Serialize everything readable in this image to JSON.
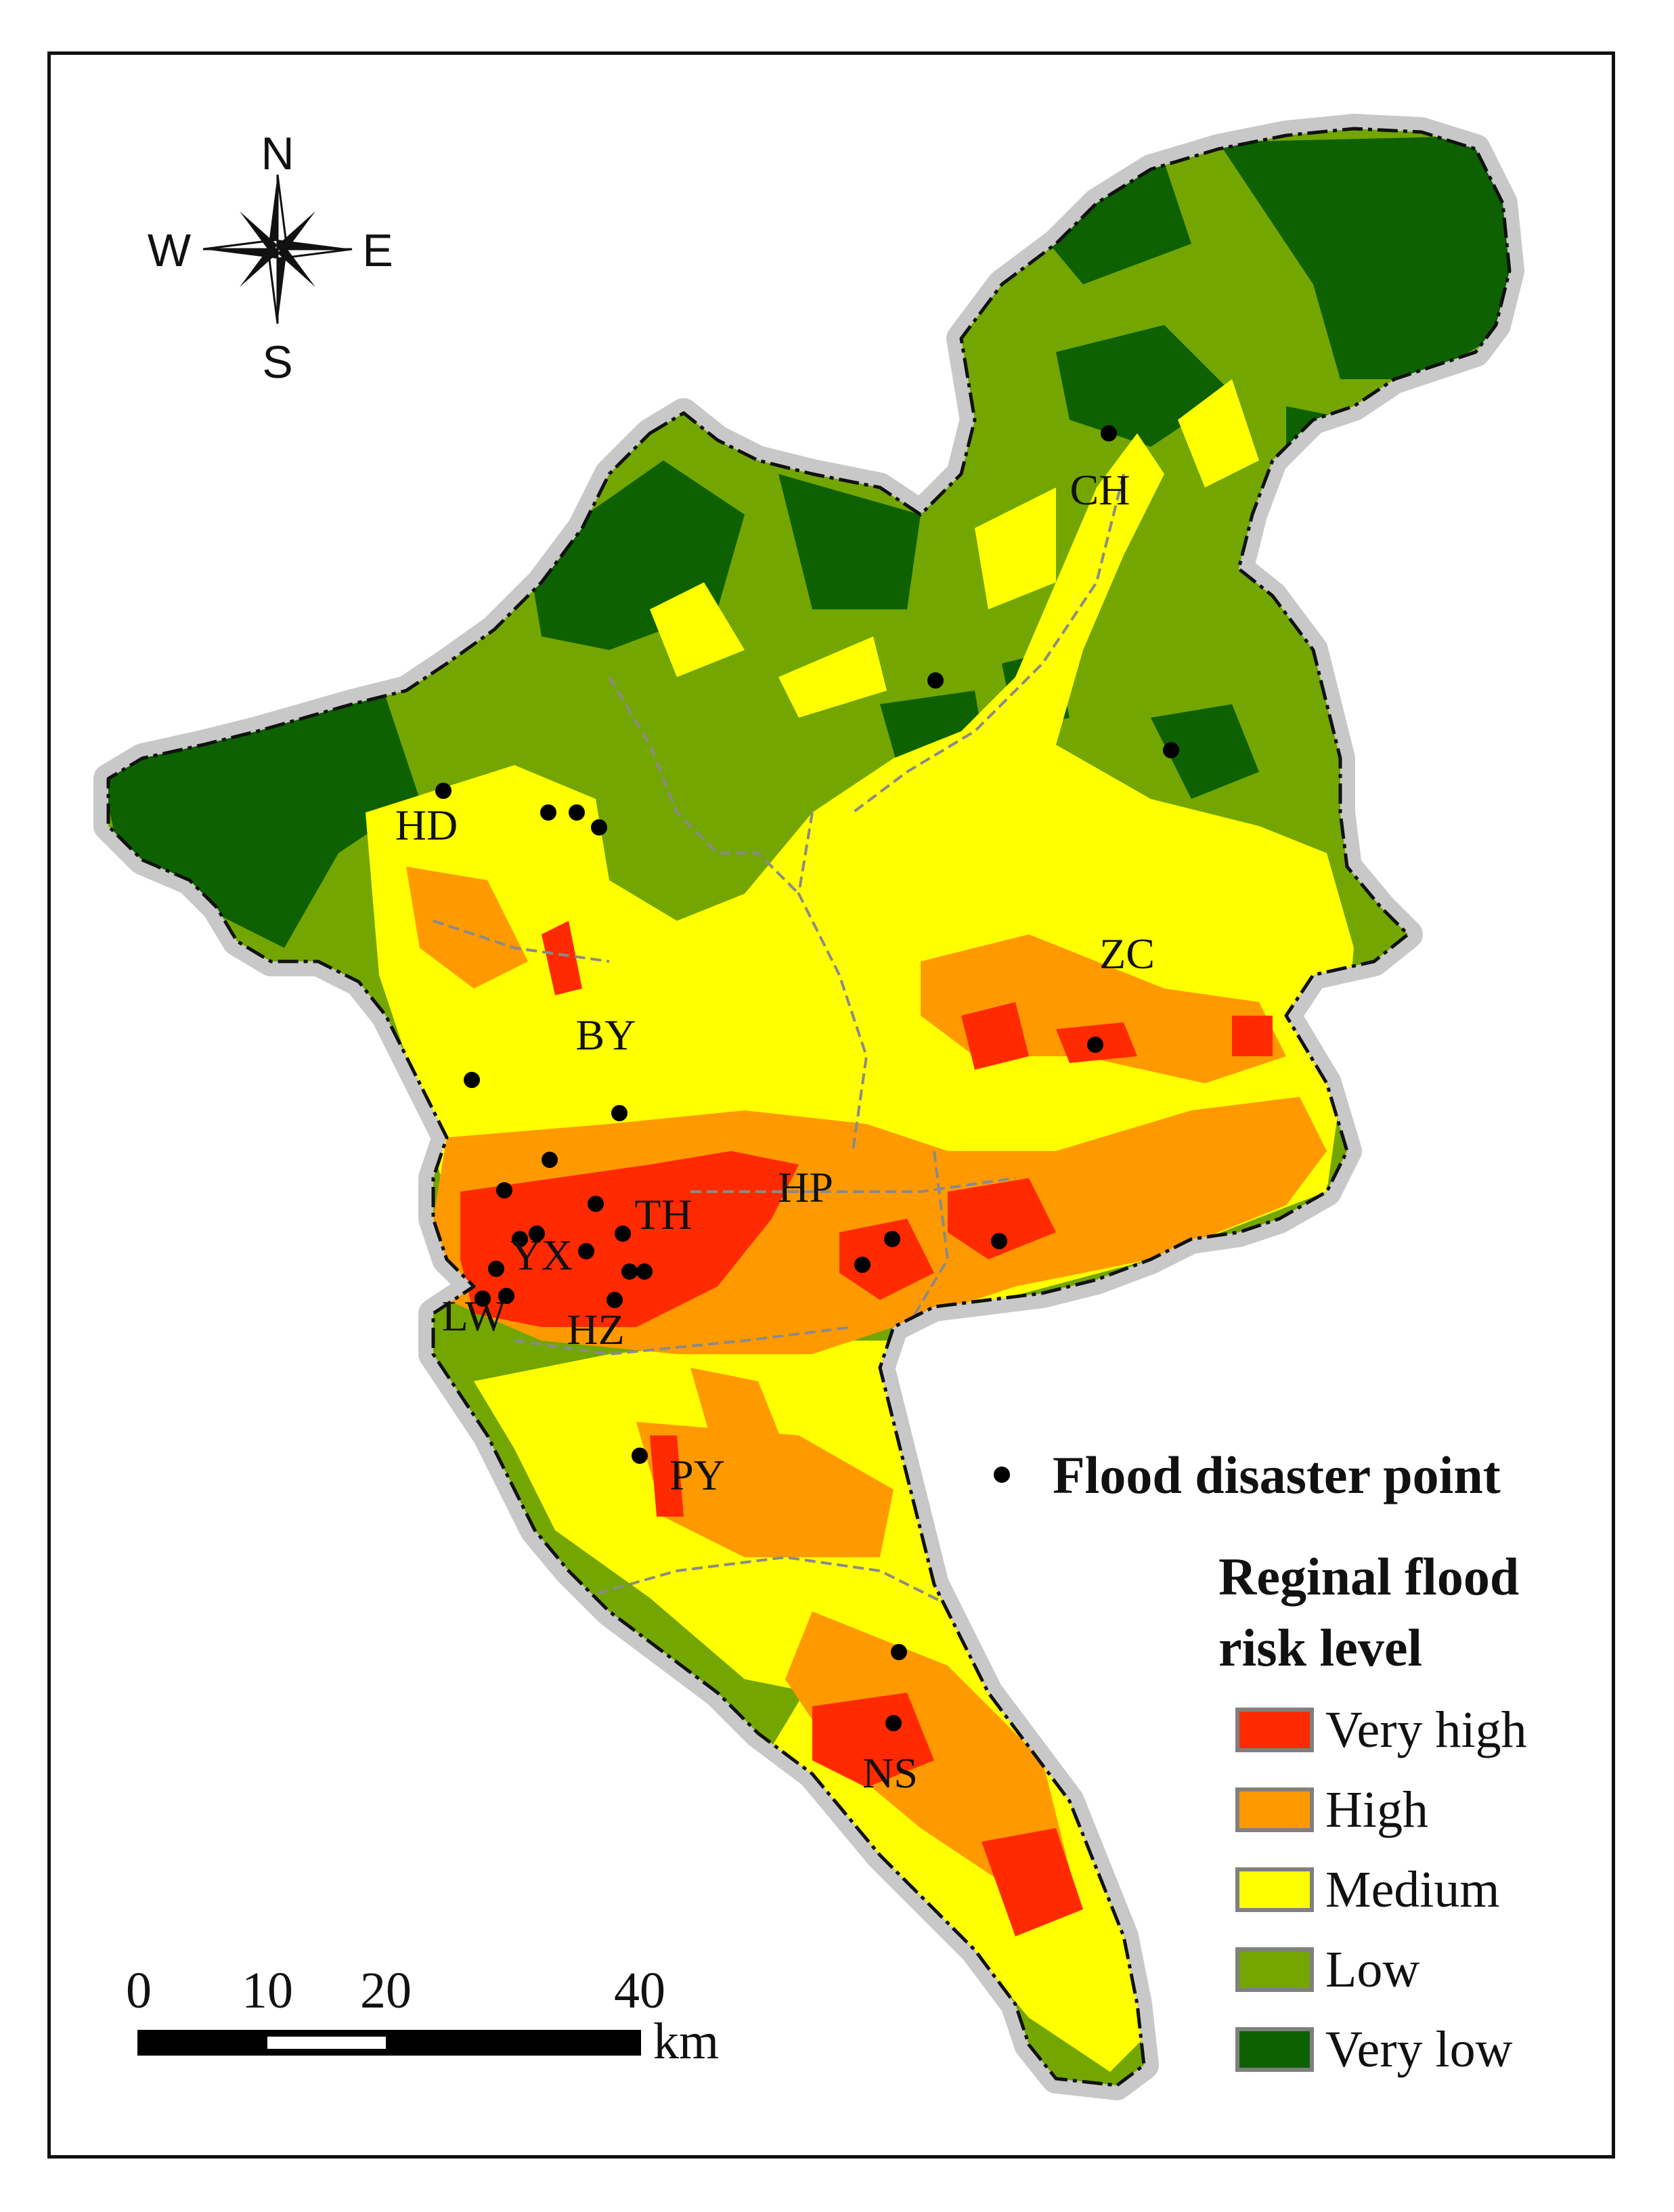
{
  "compass": {
    "north": "N",
    "south": "S",
    "east": "E",
    "west": "W"
  },
  "districts": [
    {
      "code": "CH"
    },
    {
      "code": "HD"
    },
    {
      "code": "ZC"
    },
    {
      "code": "BY"
    },
    {
      "code": "HP"
    },
    {
      "code": "TH"
    },
    {
      "code": "YX"
    },
    {
      "code": "LW"
    },
    {
      "code": "HZ"
    },
    {
      "code": "PY"
    },
    {
      "code": "NS"
    }
  ],
  "legend": {
    "points_label": "Flood disaster point",
    "title_line1": "Reginal flood",
    "title_line2": "risk level",
    "items": [
      {
        "label": "Very high",
        "color": "#ff2a00"
      },
      {
        "label": "High",
        "color": "#ff9900"
      },
      {
        "label": "Medium",
        "color": "#ffff00"
      },
      {
        "label": "Low",
        "color": "#73a600"
      },
      {
        "label": "Very low",
        "color": "#0d6100"
      }
    ]
  },
  "scalebar": {
    "ticks": [
      "0",
      "10",
      "20",
      "40"
    ],
    "unit": "km"
  },
  "colors": {
    "frame": "#111111",
    "halo": "#c8c8c8",
    "boundary": "#8a8a8a",
    "point": "#000000"
  }
}
